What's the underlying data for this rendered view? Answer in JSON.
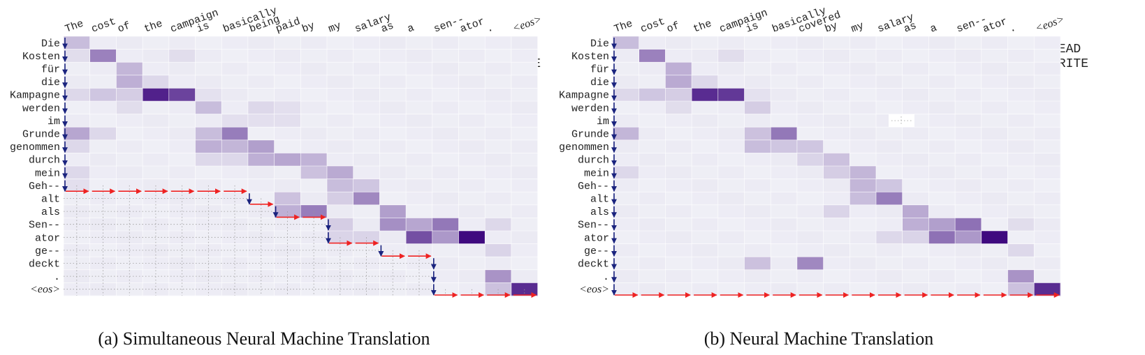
{
  "colors": {
    "cell_max": "#3f0a7f",
    "cell_min": "#efeff6",
    "read_arrow": "#1a237e",
    "write_arrow": "#ee2222",
    "grid": "#9a9a9a"
  },
  "legend": {
    "read": "READ",
    "write": "WRITE"
  },
  "chart_data": [
    {
      "type": "heatmap",
      "caption": "(a) Simultaneous Neural Machine Translation",
      "xlabel": "",
      "ylabel": "",
      "x_tokens": [
        "The",
        "cost",
        "of",
        "the",
        "campaign",
        "is",
        "basically",
        "being",
        "paid",
        "by",
        "my",
        "salary",
        "as",
        "a",
        "sen--",
        "ator",
        ".",
        "<eos>"
      ],
      "y_tokens": [
        "Die",
        "Kosten",
        "für",
        "die",
        "Kampagne",
        "werden",
        "im",
        "Grunde",
        "genommen",
        "durch",
        "mein",
        "Geh--",
        "alt",
        "als",
        "Sen--",
        "ator",
        "ge--",
        "deckt",
        ".",
        "<eos>"
      ],
      "strong_cells": [
        [
          0,
          0,
          0.22
        ],
        [
          1,
          1,
          0.48
        ],
        [
          0,
          1,
          0.08
        ],
        [
          4,
          1,
          0.08
        ],
        [
          2,
          2,
          0.25
        ],
        [
          2,
          3,
          0.28
        ],
        [
          3,
          3,
          0.1
        ],
        [
          0,
          4,
          0.1
        ],
        [
          1,
          4,
          0.18
        ],
        [
          2,
          4,
          0.15
        ],
        [
          3,
          4,
          0.9
        ],
        [
          4,
          4,
          0.75
        ],
        [
          5,
          4,
          0.06
        ],
        [
          5,
          5,
          0.22
        ],
        [
          2,
          5,
          0.08
        ],
        [
          7,
          5,
          0.1
        ],
        [
          8,
          5,
          0.07
        ],
        [
          6,
          6,
          0.07
        ],
        [
          7,
          6,
          0.07
        ],
        [
          8,
          6,
          0.07
        ],
        [
          0,
          7,
          0.32
        ],
        [
          1,
          7,
          0.1
        ],
        [
          5,
          7,
          0.22
        ],
        [
          6,
          7,
          0.5
        ],
        [
          0,
          8,
          0.1
        ],
        [
          5,
          8,
          0.28
        ],
        [
          6,
          8,
          0.25
        ],
        [
          7,
          8,
          0.35
        ],
        [
          7,
          9,
          0.28
        ],
        [
          8,
          9,
          0.32
        ],
        [
          9,
          9,
          0.26
        ],
        [
          5,
          9,
          0.1
        ],
        [
          6,
          9,
          0.1
        ],
        [
          0,
          10,
          0.1
        ],
        [
          9,
          10,
          0.2
        ],
        [
          10,
          10,
          0.3
        ],
        [
          10,
          11,
          0.22
        ],
        [
          11,
          11,
          0.18
        ],
        [
          0,
          11,
          0.07
        ],
        [
          8,
          12,
          0.2
        ],
        [
          10,
          12,
          0.15
        ],
        [
          11,
          12,
          0.45
        ],
        [
          8,
          13,
          0.28
        ],
        [
          9,
          13,
          0.5
        ],
        [
          12,
          13,
          0.35
        ],
        [
          12,
          14,
          0.42
        ],
        [
          13,
          14,
          0.32
        ],
        [
          14,
          14,
          0.52
        ],
        [
          10,
          14,
          0.15
        ],
        [
          16,
          14,
          0.1
        ],
        [
          13,
          15,
          0.7
        ],
        [
          14,
          15,
          0.38
        ],
        [
          15,
          15,
          1.0
        ],
        [
          10,
          15,
          0.12
        ],
        [
          11,
          15,
          0.12
        ],
        [
          16,
          16,
          0.12
        ],
        [
          16,
          18,
          0.4
        ],
        [
          16,
          19,
          0.2
        ],
        [
          17,
          19,
          0.85
        ]
      ],
      "policy": [
        {
          "action": "READ",
          "col": 0,
          "rows": [
            0,
            11
          ]
        },
        {
          "action": "WRITE",
          "row": 12,
          "cols": [
            0,
            6
          ]
        },
        {
          "action": "READ",
          "col": 7,
          "rows": [
            12,
            12
          ]
        },
        {
          "action": "WRITE",
          "row": 13,
          "cols": [
            7,
            7
          ]
        },
        {
          "action": "READ",
          "col": 8,
          "rows": [
            13,
            13
          ]
        },
        {
          "action": "WRITE",
          "row": 14,
          "cols": [
            8,
            9
          ]
        },
        {
          "action": "READ",
          "col": 10,
          "rows": [
            14,
            15
          ]
        },
        {
          "action": "WRITE",
          "row": 16,
          "cols": [
            10,
            11
          ]
        },
        {
          "action": "READ",
          "col": 12,
          "rows": [
            16,
            16
          ]
        },
        {
          "action": "WRITE",
          "row": 17,
          "cols": [
            12,
            13
          ]
        },
        {
          "action": "READ",
          "col": 14,
          "rows": [
            17,
            19
          ]
        },
        {
          "action": "WRITE",
          "row": 20,
          "cols": [
            14,
            17
          ]
        }
      ],
      "dotted_grid": true,
      "legend_position": "top-right"
    },
    {
      "type": "heatmap",
      "caption": "(b) Neural Machine Translation",
      "xlabel": "",
      "ylabel": "",
      "x_tokens": [
        "The",
        "cost",
        "of",
        "the",
        "campaign",
        "is",
        "basically",
        "covered",
        "by",
        "my",
        "salary",
        "as",
        "a",
        "sen--",
        "ator",
        ".",
        "<eos>"
      ],
      "y_tokens": [
        "Die",
        "Kosten",
        "für",
        "die",
        "Kampagne",
        "werden",
        "im",
        "Grunde",
        "genommen",
        "durch",
        "mein",
        "Geh--",
        "alt",
        "als",
        "Sen--",
        "ator",
        "ge--",
        "deckt",
        ".",
        "<eos>"
      ],
      "strong_cells": [
        [
          0,
          0,
          0.22
        ],
        [
          1,
          1,
          0.48
        ],
        [
          4,
          1,
          0.08
        ],
        [
          2,
          2,
          0.28
        ],
        [
          2,
          3,
          0.3
        ],
        [
          3,
          3,
          0.1
        ],
        [
          0,
          4,
          0.1
        ],
        [
          1,
          4,
          0.18
        ],
        [
          2,
          4,
          0.15
        ],
        [
          3,
          4,
          0.85
        ],
        [
          4,
          4,
          0.8
        ],
        [
          5,
          4,
          0.06
        ],
        [
          5,
          5,
          0.15
        ],
        [
          2,
          5,
          0.08
        ],
        [
          0,
          7,
          0.25
        ],
        [
          5,
          7,
          0.2
        ],
        [
          6,
          7,
          0.52
        ],
        [
          5,
          8,
          0.22
        ],
        [
          6,
          8,
          0.18
        ],
        [
          7,
          8,
          0.18
        ],
        [
          7,
          9,
          0.12
        ],
        [
          8,
          9,
          0.2
        ],
        [
          0,
          10,
          0.1
        ],
        [
          8,
          10,
          0.15
        ],
        [
          9,
          10,
          0.25
        ],
        [
          9,
          11,
          0.25
        ],
        [
          10,
          11,
          0.18
        ],
        [
          9,
          12,
          0.22
        ],
        [
          10,
          12,
          0.5
        ],
        [
          8,
          13,
          0.12
        ],
        [
          11,
          13,
          0.3
        ],
        [
          11,
          14,
          0.28
        ],
        [
          12,
          14,
          0.35
        ],
        [
          13,
          14,
          0.55
        ],
        [
          15,
          14,
          0.08
        ],
        [
          12,
          15,
          0.55
        ],
        [
          13,
          15,
          0.38
        ],
        [
          14,
          15,
          1.0
        ],
        [
          10,
          15,
          0.1
        ],
        [
          11,
          15,
          0.12
        ],
        [
          15,
          16,
          0.1
        ],
        [
          5,
          17,
          0.2
        ],
        [
          7,
          17,
          0.45
        ],
        [
          15,
          18,
          0.4
        ],
        [
          15,
          19,
          0.2
        ],
        [
          16,
          19,
          0.85
        ]
      ],
      "policy": [
        {
          "action": "READ",
          "col": 0,
          "rows": [
            0,
            19
          ]
        },
        {
          "action": "WRITE",
          "row": 20,
          "cols": [
            0,
            16
          ]
        }
      ],
      "dotted_grid": false,
      "legend_position": "top-right"
    }
  ]
}
